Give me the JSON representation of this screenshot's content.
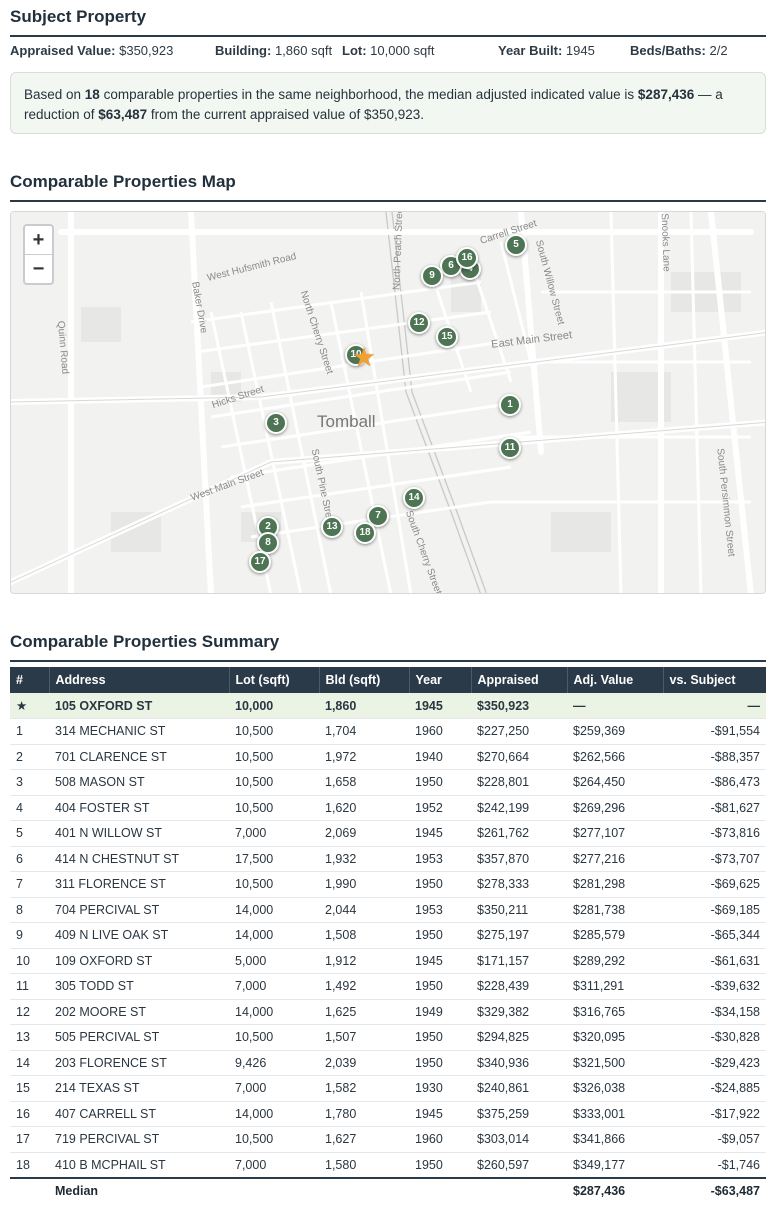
{
  "subject": {
    "title": "Subject Property",
    "facts": [
      {
        "label": "Appraised Value:",
        "value": "$350,923"
      },
      {
        "label": "Building:",
        "value": "1,860 sqft"
      },
      {
        "label": "Lot:",
        "value": "10,000 sqft"
      },
      {
        "label": "Year Built:",
        "value": "1945"
      },
      {
        "label": "Beds/Baths:",
        "value": "2/2"
      }
    ],
    "summary": {
      "p1": "Based on ",
      "count": "18",
      "p2": " comparable properties in the same neighborhood, the median adjusted indicated value is ",
      "median": "$287,436",
      "p3": " — a reduction of ",
      "reduction": "$63,487",
      "p4": " from the current appraised value of $350,923."
    }
  },
  "map": {
    "title": "Comparable Properties Map",
    "zoom_in": "+",
    "zoom_out": "−",
    "town_label": "Tomball",
    "street_labels": [
      "West Hufsmith Road",
      "Baker Drive",
      "Quinn Road",
      "North Cherry Street",
      "North Peach Street",
      "Carrell Street",
      "South Willow Street",
      "Snooks Lane",
      "East Main Street",
      "Hicks Street",
      "West Main Street",
      "South Pine Street",
      "South Cherry Street",
      "South Persimmon Street"
    ],
    "subject_marker": "★",
    "markers": [
      "1",
      "2",
      "3",
      "4",
      "5",
      "6",
      "7",
      "8",
      "9",
      "10",
      "11",
      "12",
      "13",
      "14",
      "15",
      "16",
      "17",
      "18"
    ]
  },
  "table": {
    "title": "Comparable Properties Summary",
    "headers": [
      "#",
      "Address",
      "Lot (sqft)",
      "Bld (sqft)",
      "Year",
      "Appraised",
      "Adj. Value",
      "vs. Subject"
    ],
    "subject_row": [
      "★",
      "105 OXFORD ST",
      "10,000",
      "1,860",
      "1945",
      "$350,923",
      "—",
      "—"
    ],
    "rows": [
      [
        "1",
        "314 MECHANIC ST",
        "10,500",
        "1,704",
        "1960",
        "$227,250",
        "$259,369",
        "-$91,554"
      ],
      [
        "2",
        "701 CLARENCE ST",
        "10,500",
        "1,972",
        "1940",
        "$270,664",
        "$262,566",
        "-$88,357"
      ],
      [
        "3",
        "508 MASON ST",
        "10,500",
        "1,658",
        "1950",
        "$228,801",
        "$264,450",
        "-$86,473"
      ],
      [
        "4",
        "404 FOSTER ST",
        "10,500",
        "1,620",
        "1952",
        "$242,199",
        "$269,296",
        "-$81,627"
      ],
      [
        "5",
        "401 N WILLOW ST",
        "7,000",
        "2,069",
        "1945",
        "$261,762",
        "$277,107",
        "-$73,816"
      ],
      [
        "6",
        "414 N CHESTNUT ST",
        "17,500",
        "1,932",
        "1953",
        "$357,870",
        "$277,216",
        "-$73,707"
      ],
      [
        "7",
        "311 FLORENCE ST",
        "10,500",
        "1,990",
        "1950",
        "$278,333",
        "$281,298",
        "-$69,625"
      ],
      [
        "8",
        "704 PERCIVAL ST",
        "14,000",
        "2,044",
        "1953",
        "$350,211",
        "$281,738",
        "-$69,185"
      ],
      [
        "9",
        "409 N LIVE OAK ST",
        "14,000",
        "1,508",
        "1950",
        "$275,197",
        "$285,579",
        "-$65,344"
      ],
      [
        "10",
        "109 OXFORD ST",
        "5,000",
        "1,912",
        "1945",
        "$171,157",
        "$289,292",
        "-$61,631"
      ],
      [
        "11",
        "305 TODD ST",
        "7,000",
        "1,492",
        "1950",
        "$228,439",
        "$311,291",
        "-$39,632"
      ],
      [
        "12",
        "202 MOORE ST",
        "14,000",
        "1,625",
        "1949",
        "$329,382",
        "$316,765",
        "-$34,158"
      ],
      [
        "13",
        "505 PERCIVAL ST",
        "10,500",
        "1,507",
        "1950",
        "$294,825",
        "$320,095",
        "-$30,828"
      ],
      [
        "14",
        "203 FLORENCE ST",
        "9,426",
        "2,039",
        "1950",
        "$340,936",
        "$321,500",
        "-$29,423"
      ],
      [
        "15",
        "214 TEXAS ST",
        "7,000",
        "1,582",
        "1930",
        "$240,861",
        "$326,038",
        "-$24,885"
      ],
      [
        "16",
        "407 CARRELL ST",
        "14,000",
        "1,780",
        "1945",
        "$375,259",
        "$333,001",
        "-$17,922"
      ],
      [
        "17",
        "719 PERCIVAL ST",
        "10,500",
        "1,627",
        "1960",
        "$303,014",
        "$341,866",
        "-$9,057"
      ],
      [
        "18",
        "410 B MCPHAIL ST",
        "7,000",
        "1,580",
        "1950",
        "$260,597",
        "$349,177",
        "-$1,746"
      ]
    ],
    "footer": {
      "label": "Median",
      "adj_value": "$287,436",
      "vs_subject": "-$63,487"
    }
  },
  "colors": {
    "marker": "#4d7554",
    "subject_star": "#f1a131",
    "header_bg": "#2b3a48",
    "subject_row_bg": "#eaf3e4"
  }
}
